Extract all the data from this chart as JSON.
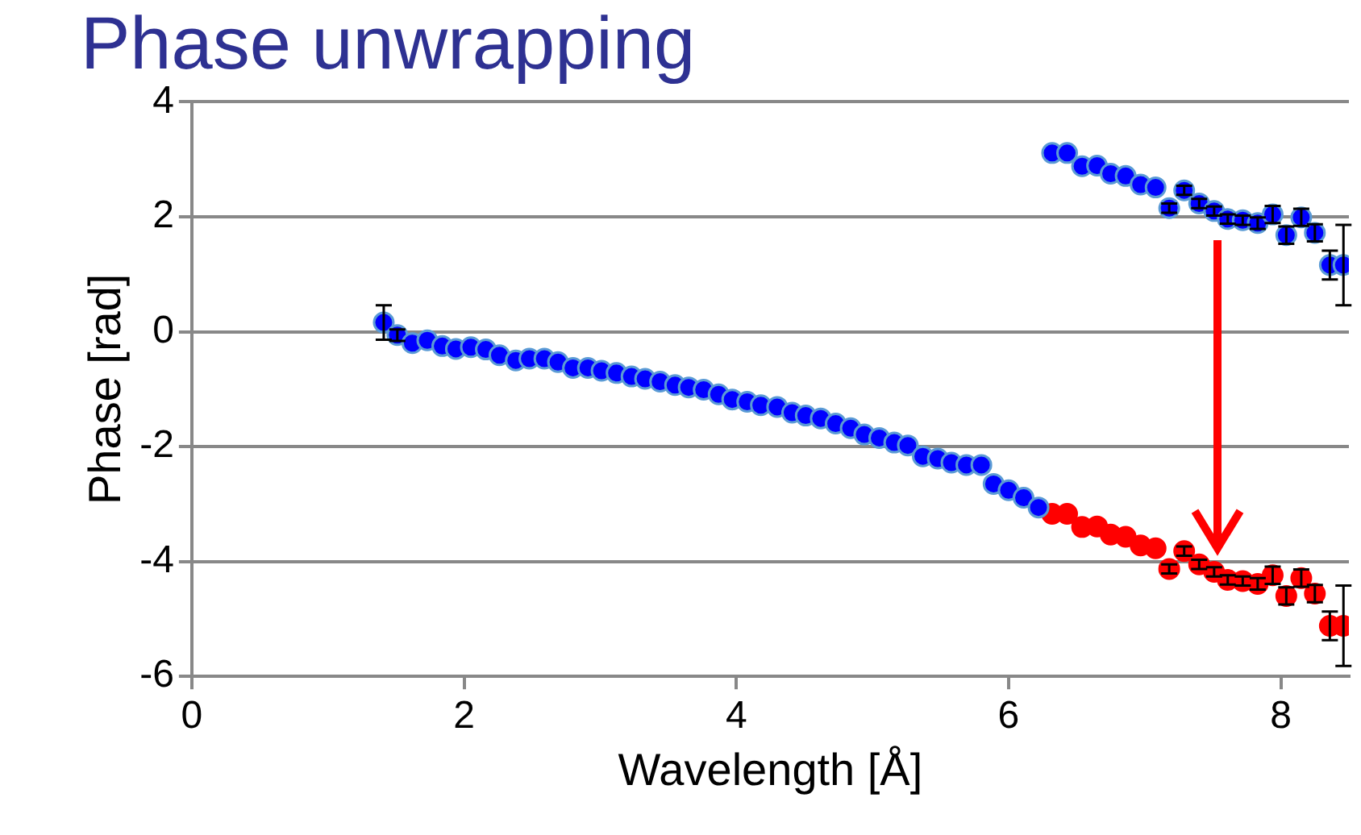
{
  "chart_data": {
    "type": "scatter",
    "title": "Phase unwrapping",
    "xlabel": "Wavelength [Å]",
    "ylabel": "Phase [rad]",
    "xlim": [
      0,
      8.5
    ],
    "xticks": [
      0,
      2,
      4,
      6,
      8
    ],
    "ylim": [
      -6,
      4
    ],
    "yticks": [
      -6,
      -4,
      -2,
      0,
      2,
      4
    ],
    "grid": "y",
    "legend": false,
    "marker": "circle",
    "series": [
      {
        "color": "#0000ff",
        "x": [
          1.41,
          1.51,
          1.62,
          1.73,
          1.84,
          1.94,
          2.05,
          2.16,
          2.26,
          2.38,
          2.48,
          2.59,
          2.69,
          2.8,
          2.91,
          3.01,
          3.12,
          3.23,
          3.33,
          3.44,
          3.55,
          3.65,
          3.76,
          3.87,
          3.97,
          4.08,
          4.18,
          4.3,
          4.41,
          4.51,
          4.62,
          4.73,
          4.84,
          4.94,
          5.05,
          5.16,
          5.26,
          5.37,
          5.48,
          5.58,
          5.69,
          5.8,
          5.89,
          6.0,
          6.11,
          6.22
        ],
        "values": [
          0.16,
          -0.06,
          -0.2,
          -0.15,
          -0.25,
          -0.3,
          -0.27,
          -0.31,
          -0.41,
          -0.5,
          -0.47,
          -0.47,
          -0.53,
          -0.63,
          -0.63,
          -0.68,
          -0.72,
          -0.78,
          -0.82,
          -0.87,
          -0.93,
          -0.97,
          -1.01,
          -1.09,
          -1.18,
          -1.22,
          -1.28,
          -1.31,
          -1.41,
          -1.46,
          -1.51,
          -1.6,
          -1.68,
          -1.79,
          -1.85,
          -1.93,
          -1.98,
          -2.17,
          -2.21,
          -2.28,
          -2.32,
          -2.32,
          -2.65,
          -2.76,
          -2.89,
          -3.06
        ],
        "errors": [
          0.3,
          0.1,
          null,
          null,
          null,
          null,
          null,
          null,
          null,
          null,
          null,
          null,
          null,
          null,
          null,
          null,
          null,
          null,
          null,
          null,
          null,
          null,
          null,
          null,
          null,
          null,
          null,
          null,
          null,
          null,
          null,
          null,
          null,
          null,
          null,
          null,
          null,
          null,
          null,
          null,
          null,
          null,
          null,
          null,
          null,
          null
        ]
      },
      {
        "color": "#0000ff",
        "x": [
          6.32,
          6.43,
          6.54,
          6.65,
          6.75,
          6.86,
          6.97,
          7.08,
          7.18,
          7.29,
          7.4,
          7.51,
          7.61,
          7.72,
          7.83,
          7.94,
          8.04,
          8.15,
          8.25,
          8.36,
          8.46
        ],
        "values": [
          3.11,
          3.11,
          2.88,
          2.89,
          2.75,
          2.71,
          2.56,
          2.51,
          2.15,
          2.46,
          2.23,
          2.1,
          1.96,
          1.94,
          1.89,
          2.04,
          1.68,
          1.99,
          1.72,
          1.16,
          1.16
        ],
        "errors": [
          null,
          null,
          null,
          null,
          null,
          null,
          null,
          null,
          0.08,
          0.08,
          0.08,
          0.08,
          0.08,
          0.08,
          0.1,
          0.15,
          0.15,
          0.15,
          0.15,
          0.25,
          0.7
        ]
      },
      {
        "color": "#ff0000",
        "x": [
          6.32,
          6.43,
          6.54,
          6.65,
          6.75,
          6.86,
          6.97,
          7.08,
          7.18,
          7.29,
          7.4,
          7.51,
          7.61,
          7.72,
          7.83,
          7.94,
          8.04,
          8.15,
          8.25,
          8.36,
          8.46
        ],
        "values": [
          -3.17,
          -3.17,
          -3.4,
          -3.39,
          -3.53,
          -3.57,
          -3.72,
          -3.77,
          -4.13,
          -3.82,
          -4.05,
          -4.18,
          -4.32,
          -4.34,
          -4.39,
          -4.24,
          -4.6,
          -4.29,
          -4.56,
          -5.12,
          -5.12
        ],
        "errors": [
          null,
          null,
          null,
          null,
          null,
          null,
          null,
          null,
          0.08,
          0.08,
          0.08,
          0.08,
          0.08,
          0.08,
          0.1,
          0.15,
          0.15,
          0.15,
          0.15,
          0.25,
          0.7
        ]
      }
    ]
  }
}
